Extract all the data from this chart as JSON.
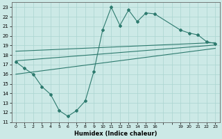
{
  "bg_color": "#cce9e6",
  "grid_color": "#aad4d0",
  "line_color": "#2d7a6e",
  "xlabel": "Humidex (Indice chaleur)",
  "xlim": [
    -0.5,
    23.5
  ],
  "ylim": [
    11,
    23.5
  ],
  "yticks": [
    11,
    12,
    13,
    14,
    15,
    16,
    17,
    18,
    19,
    20,
    21,
    22,
    23
  ],
  "xticks": [
    0,
    1,
    2,
    3,
    4,
    5,
    6,
    7,
    8,
    9,
    10,
    11,
    12,
    13,
    14,
    15,
    16,
    19,
    20,
    21,
    22,
    23
  ],
  "jagged_x": [
    0,
    1,
    2,
    3,
    4,
    5,
    6,
    7,
    8,
    9,
    10,
    11,
    12,
    13,
    14,
    15,
    16,
    19,
    20,
    21,
    22,
    23
  ],
  "jagged_y": [
    17.3,
    16.6,
    16.0,
    14.7,
    13.9,
    12.2,
    11.6,
    12.2,
    13.2,
    16.3,
    20.6,
    23.0,
    21.1,
    22.7,
    21.5,
    22.4,
    22.3,
    20.6,
    20.3,
    20.1,
    19.4,
    19.2
  ],
  "line1_x": [
    0,
    23
  ],
  "line1_y": [
    18.4,
    19.3
  ],
  "line2_x": [
    0,
    23
  ],
  "line2_y": [
    17.4,
    19.05
  ],
  "line3_x": [
    0,
    23
  ],
  "line3_y": [
    16.0,
    18.7
  ]
}
